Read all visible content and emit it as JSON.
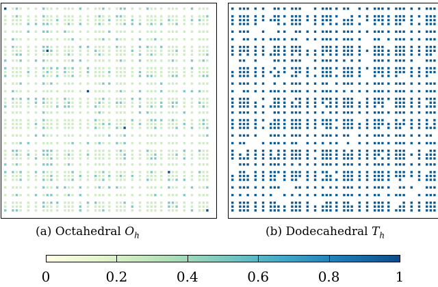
{
  "figure": {
    "panels": [
      {
        "id": "a",
        "caption_prefix": "(a) Octahedral ",
        "caption_symbol": "O",
        "caption_subscript": "h",
        "cell_fill_low": "#cfebc4",
        "cell_fill_mid": "#86c8bf",
        "cell_fill_high": "#0b4f8a",
        "nonzero_fraction": 0.2
      },
      {
        "id": "b",
        "caption_prefix": "(b) Dodecahedral ",
        "caption_symbol": "T",
        "caption_subscript": "h",
        "cell_fill": "#0b5a93",
        "nonzero_fraction": 1.0
      }
    ]
  },
  "colorbar": {
    "min": 0,
    "max": 1,
    "tick_labels": [
      "0",
      "0.2",
      "0.4",
      "0.6",
      "0.8",
      "1"
    ],
    "colors": [
      "#ffffe5",
      "#e0f3c9",
      "#b4e0b8",
      "#7cc9c0",
      "#41a9c8",
      "#1d7bb5",
      "#0c4d8a"
    ]
  }
}
